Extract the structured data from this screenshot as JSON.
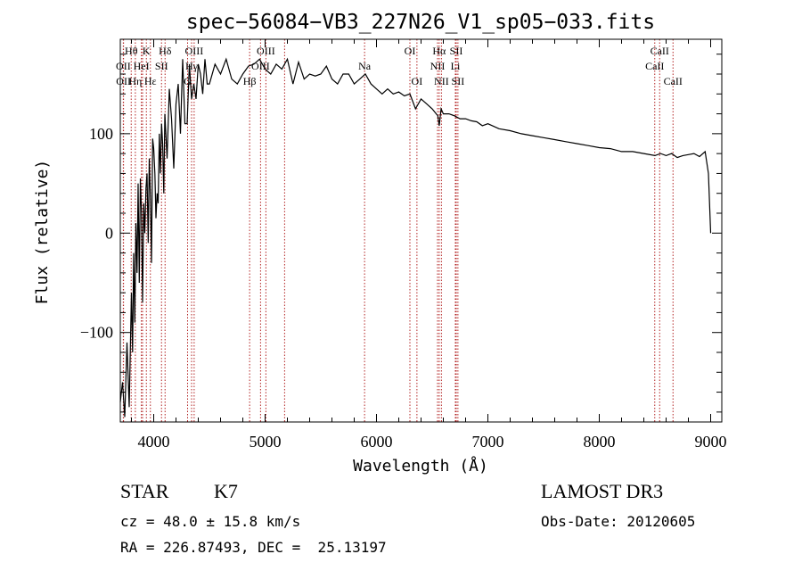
{
  "chart_data": {
    "type": "line",
    "title": "spec−56084−VB3_227N26_V1_sp05−033.fits",
    "xlabel": "Wavelength (Å)",
    "ylabel": "Flux (relative)",
    "xlim": [
      3700,
      9100
    ],
    "ylim": [
      -190,
      195
    ],
    "xticks": [
      4000,
      5000,
      6000,
      7000,
      8000,
      9000
    ],
    "xtick_labels": [
      "4000",
      "5000",
      "6000",
      "7000",
      "8000",
      "9000"
    ],
    "yticks": [
      -100,
      0,
      100
    ],
    "ytick_labels": [
      "−100",
      "0",
      "100"
    ],
    "grid": false,
    "line_color": "#000000",
    "marker_color": "#b22222",
    "series": [
      {
        "name": "flux",
        "x": [
          3700,
          3720,
          3740,
          3760,
          3780,
          3800,
          3810,
          3820,
          3830,
          3840,
          3850,
          3860,
          3870,
          3880,
          3890,
          3900,
          3910,
          3920,
          3930,
          3940,
          3950,
          3960,
          3970,
          3980,
          3990,
          4000,
          4010,
          4020,
          4030,
          4040,
          4050,
          4060,
          4070,
          4080,
          4090,
          4100,
          4120,
          4140,
          4160,
          4180,
          4200,
          4220,
          4240,
          4260,
          4280,
          4300,
          4320,
          4340,
          4360,
          4380,
          4400,
          4420,
          4440,
          4460,
          4480,
          4500,
          4550,
          4600,
          4650,
          4700,
          4750,
          4800,
          4850,
          4900,
          4950,
          5000,
          5050,
          5100,
          5150,
          5200,
          5250,
          5300,
          5350,
          5400,
          5450,
          5500,
          5550,
          5600,
          5650,
          5700,
          5750,
          5800,
          5850,
          5900,
          5950,
          6000,
          6050,
          6100,
          6150,
          6200,
          6250,
          6300,
          6350,
          6400,
          6450,
          6500,
          6550,
          6563,
          6580,
          6600,
          6650,
          6700,
          6750,
          6800,
          6850,
          6900,
          6950,
          7000,
          7100,
          7200,
          7300,
          7400,
          7500,
          7600,
          7700,
          7800,
          7900,
          8000,
          8100,
          8200,
          8300,
          8400,
          8500,
          8550,
          8600,
          8650,
          8700,
          8750,
          8800,
          8850,
          8900,
          8950,
          8980,
          9000
        ],
        "values": [
          -170,
          -150,
          -185,
          -110,
          -175,
          -60,
          -120,
          -20,
          -90,
          10,
          -40,
          50,
          -50,
          55,
          20,
          -70,
          30,
          0,
          45,
          60,
          -10,
          75,
          35,
          -30,
          95,
          85,
          60,
          15,
          40,
          30,
          100,
          60,
          110,
          90,
          40,
          120,
          75,
          145,
          115,
          65,
          130,
          150,
          100,
          175,
          110,
          110,
          170,
          135,
          150,
          135,
          170,
          160,
          140,
          175,
          150,
          150,
          170,
          160,
          175,
          155,
          150,
          160,
          168,
          170,
          175,
          165,
          160,
          170,
          165,
          175,
          150,
          172,
          155,
          160,
          158,
          160,
          168,
          155,
          150,
          160,
          160,
          150,
          155,
          160,
          150,
          145,
          140,
          145,
          140,
          142,
          138,
          140,
          125,
          135,
          130,
          125,
          118,
          108,
          125,
          120,
          120,
          118,
          115,
          115,
          113,
          112,
          108,
          110,
          105,
          103,
          100,
          98,
          96,
          94,
          92,
          90,
          88,
          86,
          85,
          82,
          82,
          80,
          78,
          80,
          78,
          80,
          76,
          78,
          79,
          80,
          77,
          82,
          60,
          0
        ]
      }
    ],
    "annotations": [
      {
        "label": "Hθ",
        "x": 3798,
        "row": 1
      },
      {
        "label": "OII",
        "x": 3727,
        "row": 2
      },
      {
        "label": "OII",
        "x": 3729,
        "row": 3
      },
      {
        "label": "Hη",
        "x": 3835,
        "row": 3
      },
      {
        "label": "K",
        "x": 3934,
        "row": 1
      },
      {
        "label": "HeI",
        "x": 3889,
        "row": 2
      },
      {
        "label": "SII",
        "x": 4070,
        "row": 2
      },
      {
        "label": "Hε",
        "x": 3970,
        "row": 3
      },
      {
        "label": "Hδ",
        "x": 4102,
        "row": 1
      },
      {
        "label": "OIII",
        "x": 4363,
        "row": 1
      },
      {
        "label": "Hγ",
        "x": 4340,
        "row": 2
      },
      {
        "label": "G",
        "x": 4304,
        "row": 3
      },
      {
        "label": "OIII",
        "x": 5007,
        "row": 1
      },
      {
        "label": "OIII",
        "x": 4959,
        "row": 2
      },
      {
        "label": "Hβ",
        "x": 4861,
        "row": 3
      },
      {
        "label": "Na",
        "x": 5893,
        "row": 2
      },
      {
        "label": "OI",
        "x": 6300,
        "row": 1
      },
      {
        "label": "OI",
        "x": 6363,
        "row": 3
      },
      {
        "label": "Hα",
        "x": 6563,
        "row": 1
      },
      {
        "label": "SII",
        "x": 6716,
        "row": 1
      },
      {
        "label": "NII",
        "x": 6548,
        "row": 2
      },
      {
        "label": "Li",
        "x": 6708,
        "row": 2
      },
      {
        "label": "NII",
        "x": 6583,
        "row": 3
      },
      {
        "label": "SII",
        "x": 6731,
        "row": 3
      },
      {
        "label": "CaII",
        "x": 8542,
        "row": 1
      },
      {
        "label": "CaII",
        "x": 8498,
        "row": 2
      },
      {
        "label": "CaII",
        "x": 8662,
        "row": 3
      }
    ],
    "extra_markers": [
      5175,
      3900
    ]
  },
  "info": {
    "class_label": "STAR",
    "subclass": "K7",
    "survey": "LAMOST DR3",
    "cz_line": "cz = 48.0 ± 15.8 km/s",
    "obs_date": "Obs-Date: 20120605",
    "coords_line": "RA = 226.87493, DEC =  25.13197"
  }
}
